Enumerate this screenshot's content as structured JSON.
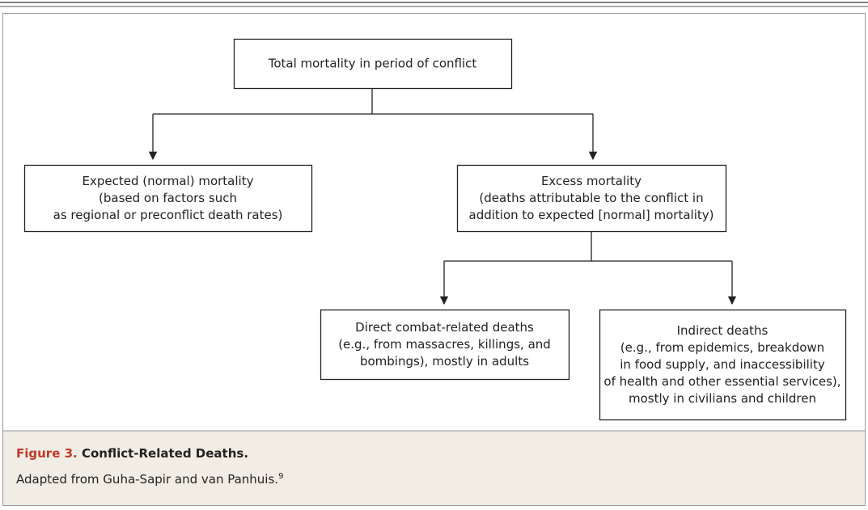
{
  "nodes": [
    {
      "lines": [
        "Total mortality in period of conflict"
      ]
    },
    {
      "lines": [
        "Expected (normal) mortality",
        "(based on factors such",
        "as regional or preconflict death rates)"
      ]
    },
    {
      "lines": [
        "Excess mortality",
        "(deaths attributable to the conflict in",
        "addition to expected [normal] mortality)"
      ]
    },
    {
      "lines": [
        "Direct combat-related deaths",
        "(e.g., from massacres, killings, and",
        "bombings), mostly in adults"
      ]
    },
    {
      "lines": [
        "Indirect deaths",
        "(e.g., from epidemics, breakdown",
        "in food supply, and inaccessibility",
        "of health and other essential services),",
        "mostly in civilians and children"
      ]
    }
  ],
  "caption": {
    "label": "Figure 3.",
    "title": "Conflict-Related Deaths.",
    "text": "Adapted from Guha-Sapir and van Panhuis.",
    "ref": "9"
  }
}
